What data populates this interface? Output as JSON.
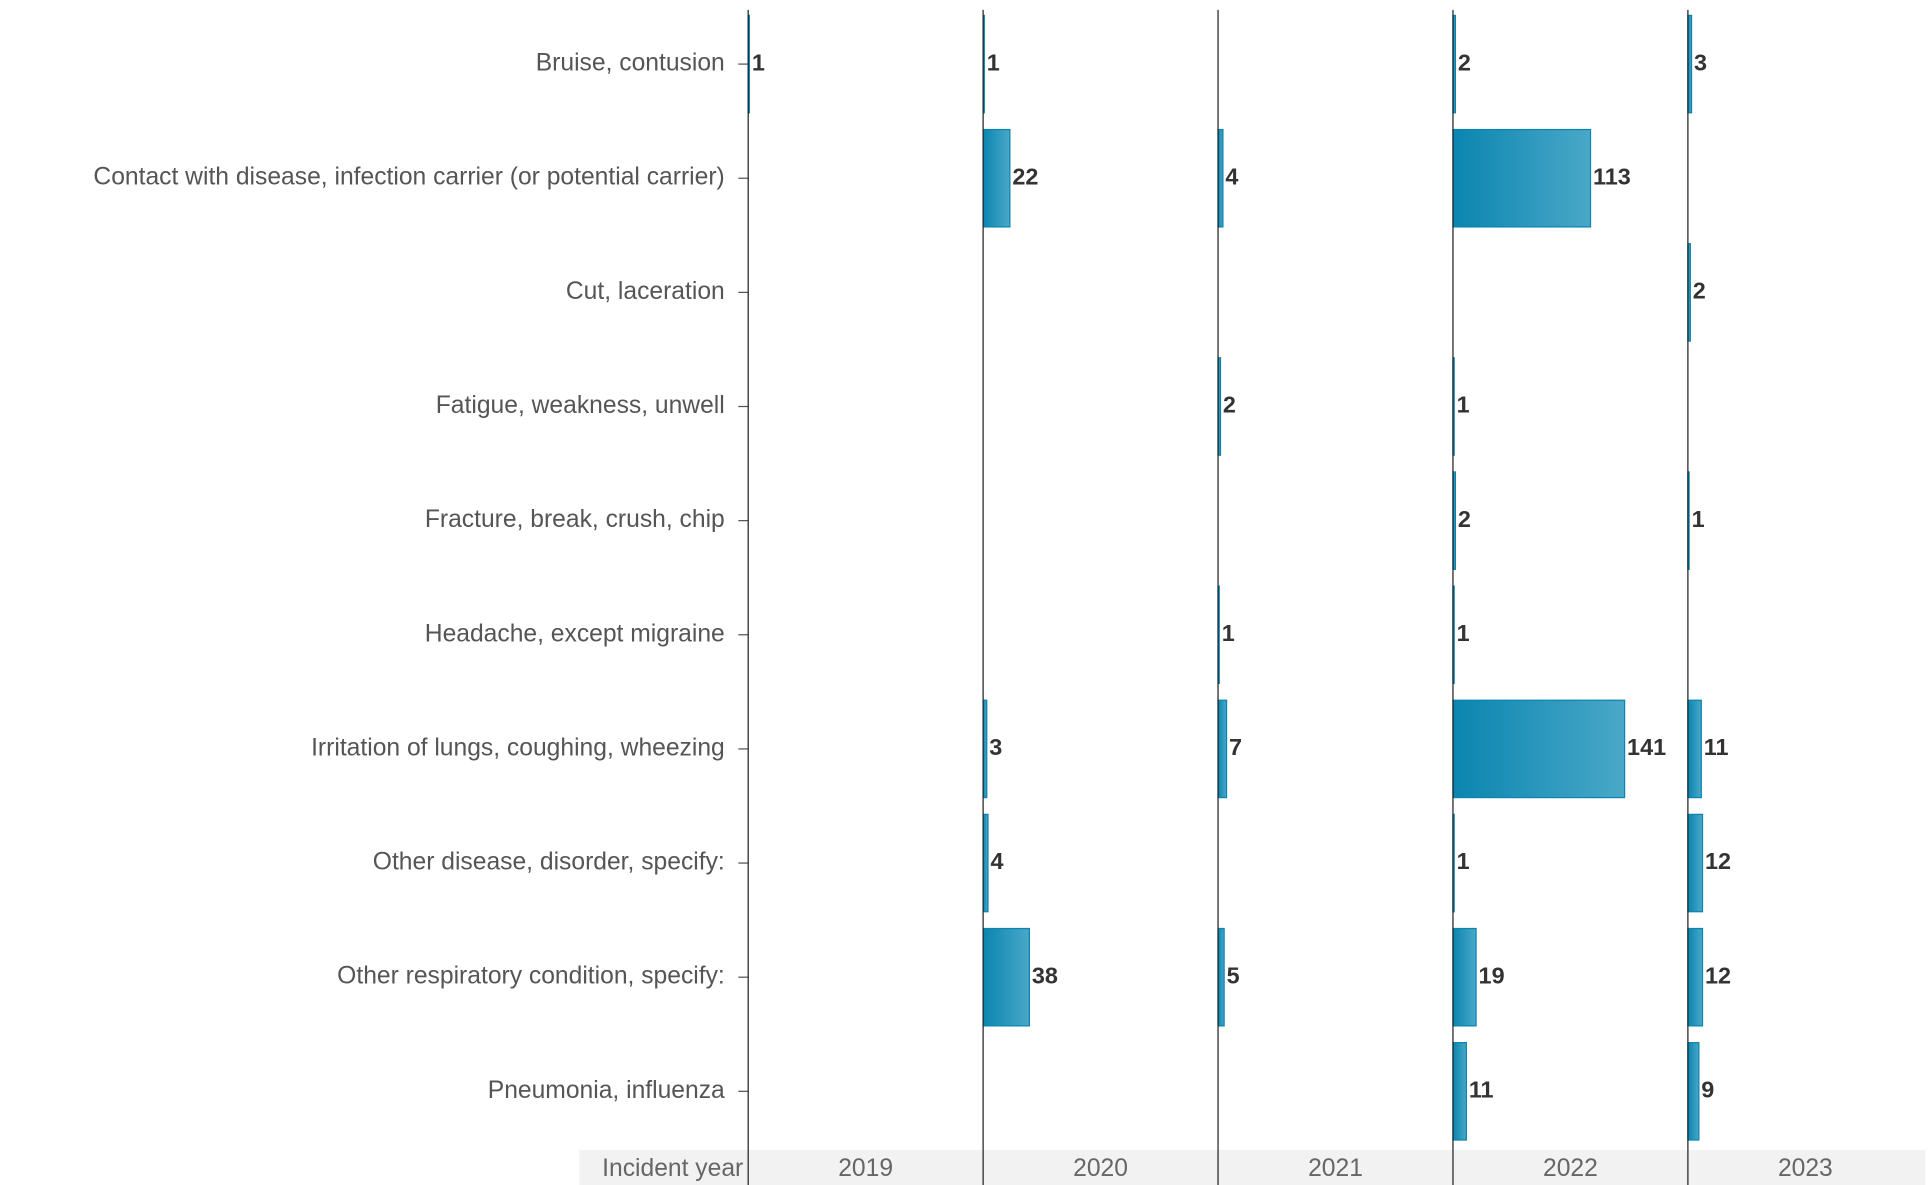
{
  "chart_data": {
    "type": "bar",
    "x_label": "Incident year",
    "categories": [
      "Bruise, contusion",
      "Contact with disease, infection carrier (or potential carrier)",
      "Cut, laceration",
      "Fatigue, weakness, unwell",
      "Fracture, break, crush, chip",
      "Headache, except migraine",
      "Irritation of lungs, coughing, wheezing",
      "Other disease, disorder, specify:",
      "Other respiratory condition, specify:",
      "Pneumonia, influenza"
    ],
    "series": [
      {
        "name": "2019",
        "color": "#0a85b0",
        "values": [
          1,
          null,
          null,
          null,
          null,
          null,
          null,
          null,
          null,
          null
        ]
      },
      {
        "name": "2020",
        "color": "#0a85b0",
        "values": [
          1,
          22,
          null,
          null,
          null,
          null,
          3,
          4,
          38,
          null
        ]
      },
      {
        "name": "2021",
        "color": "#0a85b0",
        "values": [
          null,
          4,
          null,
          2,
          null,
          1,
          7,
          null,
          5,
          null
        ]
      },
      {
        "name": "2022",
        "color": "#0a85b0",
        "values": [
          2,
          113,
          null,
          1,
          2,
          1,
          141,
          1,
          19,
          11
        ]
      },
      {
        "name": "2023",
        "color": "#0a85b0",
        "values": [
          3,
          null,
          2,
          null,
          1,
          null,
          11,
          12,
          12,
          9
        ]
      }
    ],
    "xlim": [
      0,
      193
    ]
  }
}
